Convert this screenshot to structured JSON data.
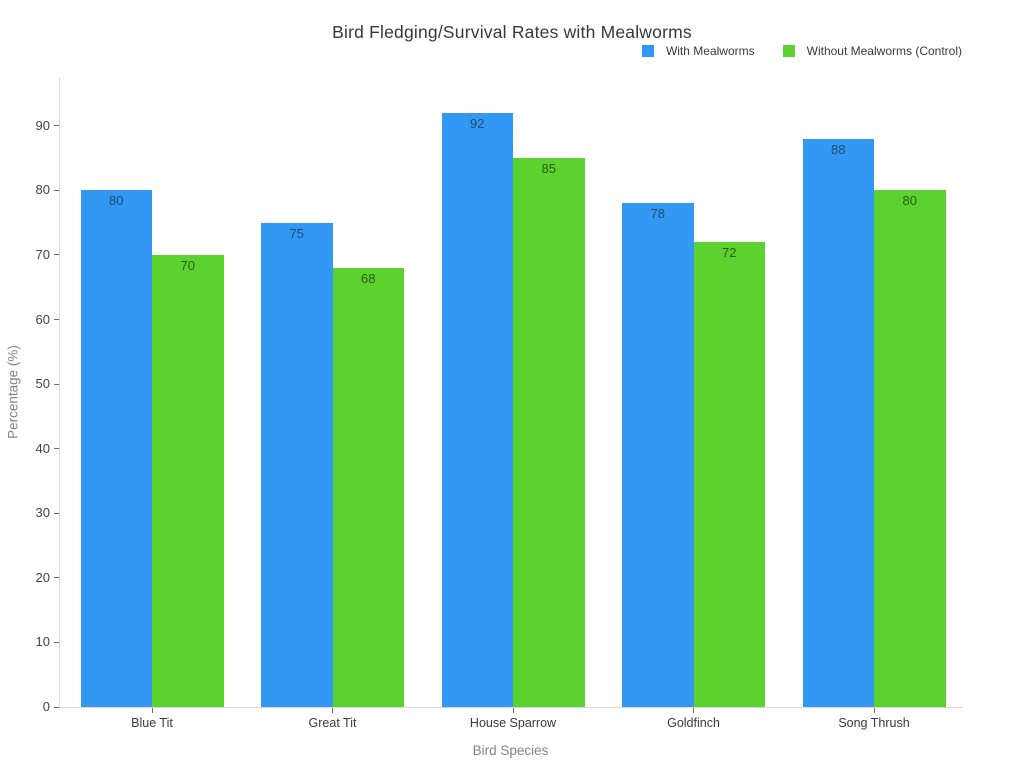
{
  "title": "Bird Fledging/Survival Rates with Mealworms",
  "xlabel": "Bird Species",
  "ylabel": "Percentage (%)",
  "chart_data": {
    "type": "bar",
    "title": "Bird Fledging/Survival Rates with Mealworms",
    "xlabel": "Bird Species",
    "ylabel": "Percentage (%)",
    "categories": [
      "Blue Tit",
      "Great Tit",
      "House Sparrow",
      "Goldfinch",
      "Song Thrush"
    ],
    "series": [
      {
        "name": "With Mealworms",
        "values": [
          80,
          75,
          92,
          78,
          88
        ],
        "color": "#3398f3",
        "label_color": "#1f4d70"
      },
      {
        "name": "Without Mealworms (Control)",
        "values": [
          70,
          68,
          85,
          72,
          80
        ],
        "color": "#5cd22e",
        "label_color": "#2f5a12"
      }
    ],
    "bar_value_labels": true,
    "ylim": [
      0,
      97.4
    ],
    "yticks": [
      0,
      10,
      20,
      30,
      40,
      50,
      60,
      70,
      80,
      90
    ],
    "grid": false,
    "legend_position": "top-right",
    "spine_color": "#d9d9d9"
  }
}
